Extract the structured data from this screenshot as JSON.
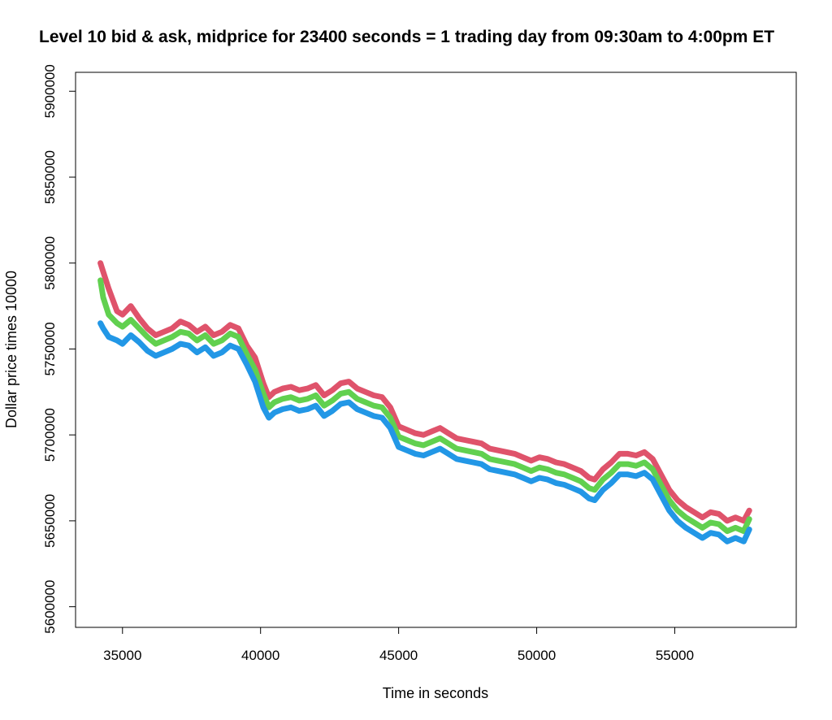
{
  "chart_data": {
    "type": "line",
    "title": "Level 10 bid & ask, midprice for 23400 seconds = 1 trading day from 09:30am to 4:00pm ET",
    "xlabel": "Time in seconds",
    "ylabel": "Dollar price times 10000",
    "xlim": [
      33300,
      59400
    ],
    "ylim": [
      5588000,
      5911000
    ],
    "xticks": [
      35000,
      40000,
      45000,
      50000,
      55000
    ],
    "yticks": [
      5600000,
      5650000,
      5700000,
      5750000,
      5800000,
      5850000,
      5900000
    ],
    "grid": false,
    "legend": "none",
    "x": [
      34200,
      34300,
      34500,
      34800,
      35000,
      35300,
      35600,
      35900,
      36200,
      36500,
      36800,
      37100,
      37400,
      37700,
      38000,
      38300,
      38600,
      38900,
      39200,
      39500,
      39800,
      40100,
      40300,
      40500,
      40800,
      41100,
      41400,
      41700,
      42000,
      42300,
      42600,
      42900,
      43200,
      43500,
      43800,
      44100,
      44400,
      44700,
      45000,
      45300,
      45600,
      45900,
      46200,
      46500,
      46800,
      47100,
      47400,
      47700,
      48000,
      48300,
      48600,
      48900,
      49200,
      49500,
      49800,
      50100,
      50400,
      50700,
      51000,
      51300,
      51600,
      51900,
      52100,
      52400,
      52700,
      53000,
      53300,
      53600,
      53900,
      54200,
      54500,
      54800,
      55100,
      55400,
      55700,
      56000,
      56300,
      56600,
      56900,
      57200,
      57500,
      57700
    ],
    "series": [
      {
        "color": "#DF536B",
        "values": [
          5800000,
          5795000,
          5785000,
          5772000,
          5770000,
          5775000,
          5768000,
          5762000,
          5758000,
          5760000,
          5762000,
          5766000,
          5764000,
          5760000,
          5763000,
          5758000,
          5760000,
          5764000,
          5762000,
          5752000,
          5745000,
          5730000,
          5722000,
          5725000,
          5727000,
          5728000,
          5726000,
          5727000,
          5729000,
          5723000,
          5726000,
          5730000,
          5731000,
          5727000,
          5725000,
          5723000,
          5722000,
          5716000,
          5705000,
          5703000,
          5701000,
          5700000,
          5702000,
          5704000,
          5701000,
          5698000,
          5697000,
          5696000,
          5695000,
          5692000,
          5691000,
          5690000,
          5689000,
          5687000,
          5685000,
          5687000,
          5686000,
          5684000,
          5683000,
          5681000,
          5679000,
          5675000,
          5674000,
          5680000,
          5684000,
          5689000,
          5689000,
          5688000,
          5690000,
          5686000,
          5677000,
          5668000,
          5662000,
          5658000,
          5655000,
          5652000,
          5655000,
          5654000,
          5650000,
          5652000,
          5650000,
          5656000
        ]
      },
      {
        "color": "#61D04F",
        "values": [
          5790000,
          5780000,
          5770000,
          5765000,
          5763000,
          5767000,
          5762000,
          5757000,
          5753000,
          5755000,
          5757000,
          5760000,
          5759000,
          5755000,
          5758000,
          5753000,
          5755000,
          5759000,
          5757000,
          5747000,
          5738000,
          5724000,
          5716000,
          5719000,
          5721000,
          5722000,
          5720000,
          5721000,
          5723000,
          5717000,
          5720000,
          5724000,
          5725000,
          5721000,
          5719000,
          5717000,
          5716000,
          5710000,
          5699000,
          5697000,
          5695000,
          5694000,
          5696000,
          5698000,
          5695000,
          5692000,
          5691000,
          5690000,
          5689000,
          5686000,
          5685000,
          5684000,
          5683000,
          5681000,
          5679000,
          5681000,
          5680000,
          5678000,
          5677000,
          5675000,
          5673000,
          5669000,
          5668000,
          5674000,
          5678000,
          5683000,
          5683000,
          5682000,
          5684000,
          5680000,
          5671000,
          5662000,
          5656000,
          5652000,
          5649000,
          5646000,
          5649000,
          5648000,
          5644000,
          5646000,
          5644000,
          5651000
        ]
      },
      {
        "color": "#2297E6",
        "values": [
          5765000,
          5762000,
          5757000,
          5755000,
          5753000,
          5758000,
          5754000,
          5749000,
          5746000,
          5748000,
          5750000,
          5753000,
          5752000,
          5748000,
          5751000,
          5746000,
          5748000,
          5752000,
          5750000,
          5741000,
          5731000,
          5716000,
          5710000,
          5713000,
          5715000,
          5716000,
          5714000,
          5715000,
          5717000,
          5711000,
          5714000,
          5718000,
          5719000,
          5715000,
          5713000,
          5711000,
          5710000,
          5704000,
          5693000,
          5691000,
          5689000,
          5688000,
          5690000,
          5692000,
          5689000,
          5686000,
          5685000,
          5684000,
          5683000,
          5680000,
          5679000,
          5678000,
          5677000,
          5675000,
          5673000,
          5675000,
          5674000,
          5672000,
          5671000,
          5669000,
          5667000,
          5663000,
          5662000,
          5668000,
          5672000,
          5677000,
          5677000,
          5676000,
          5678000,
          5674000,
          5665000,
          5656000,
          5650000,
          5646000,
          5643000,
          5640000,
          5643000,
          5642000,
          5638000,
          5640000,
          5638000,
          5645000
        ]
      }
    ]
  }
}
